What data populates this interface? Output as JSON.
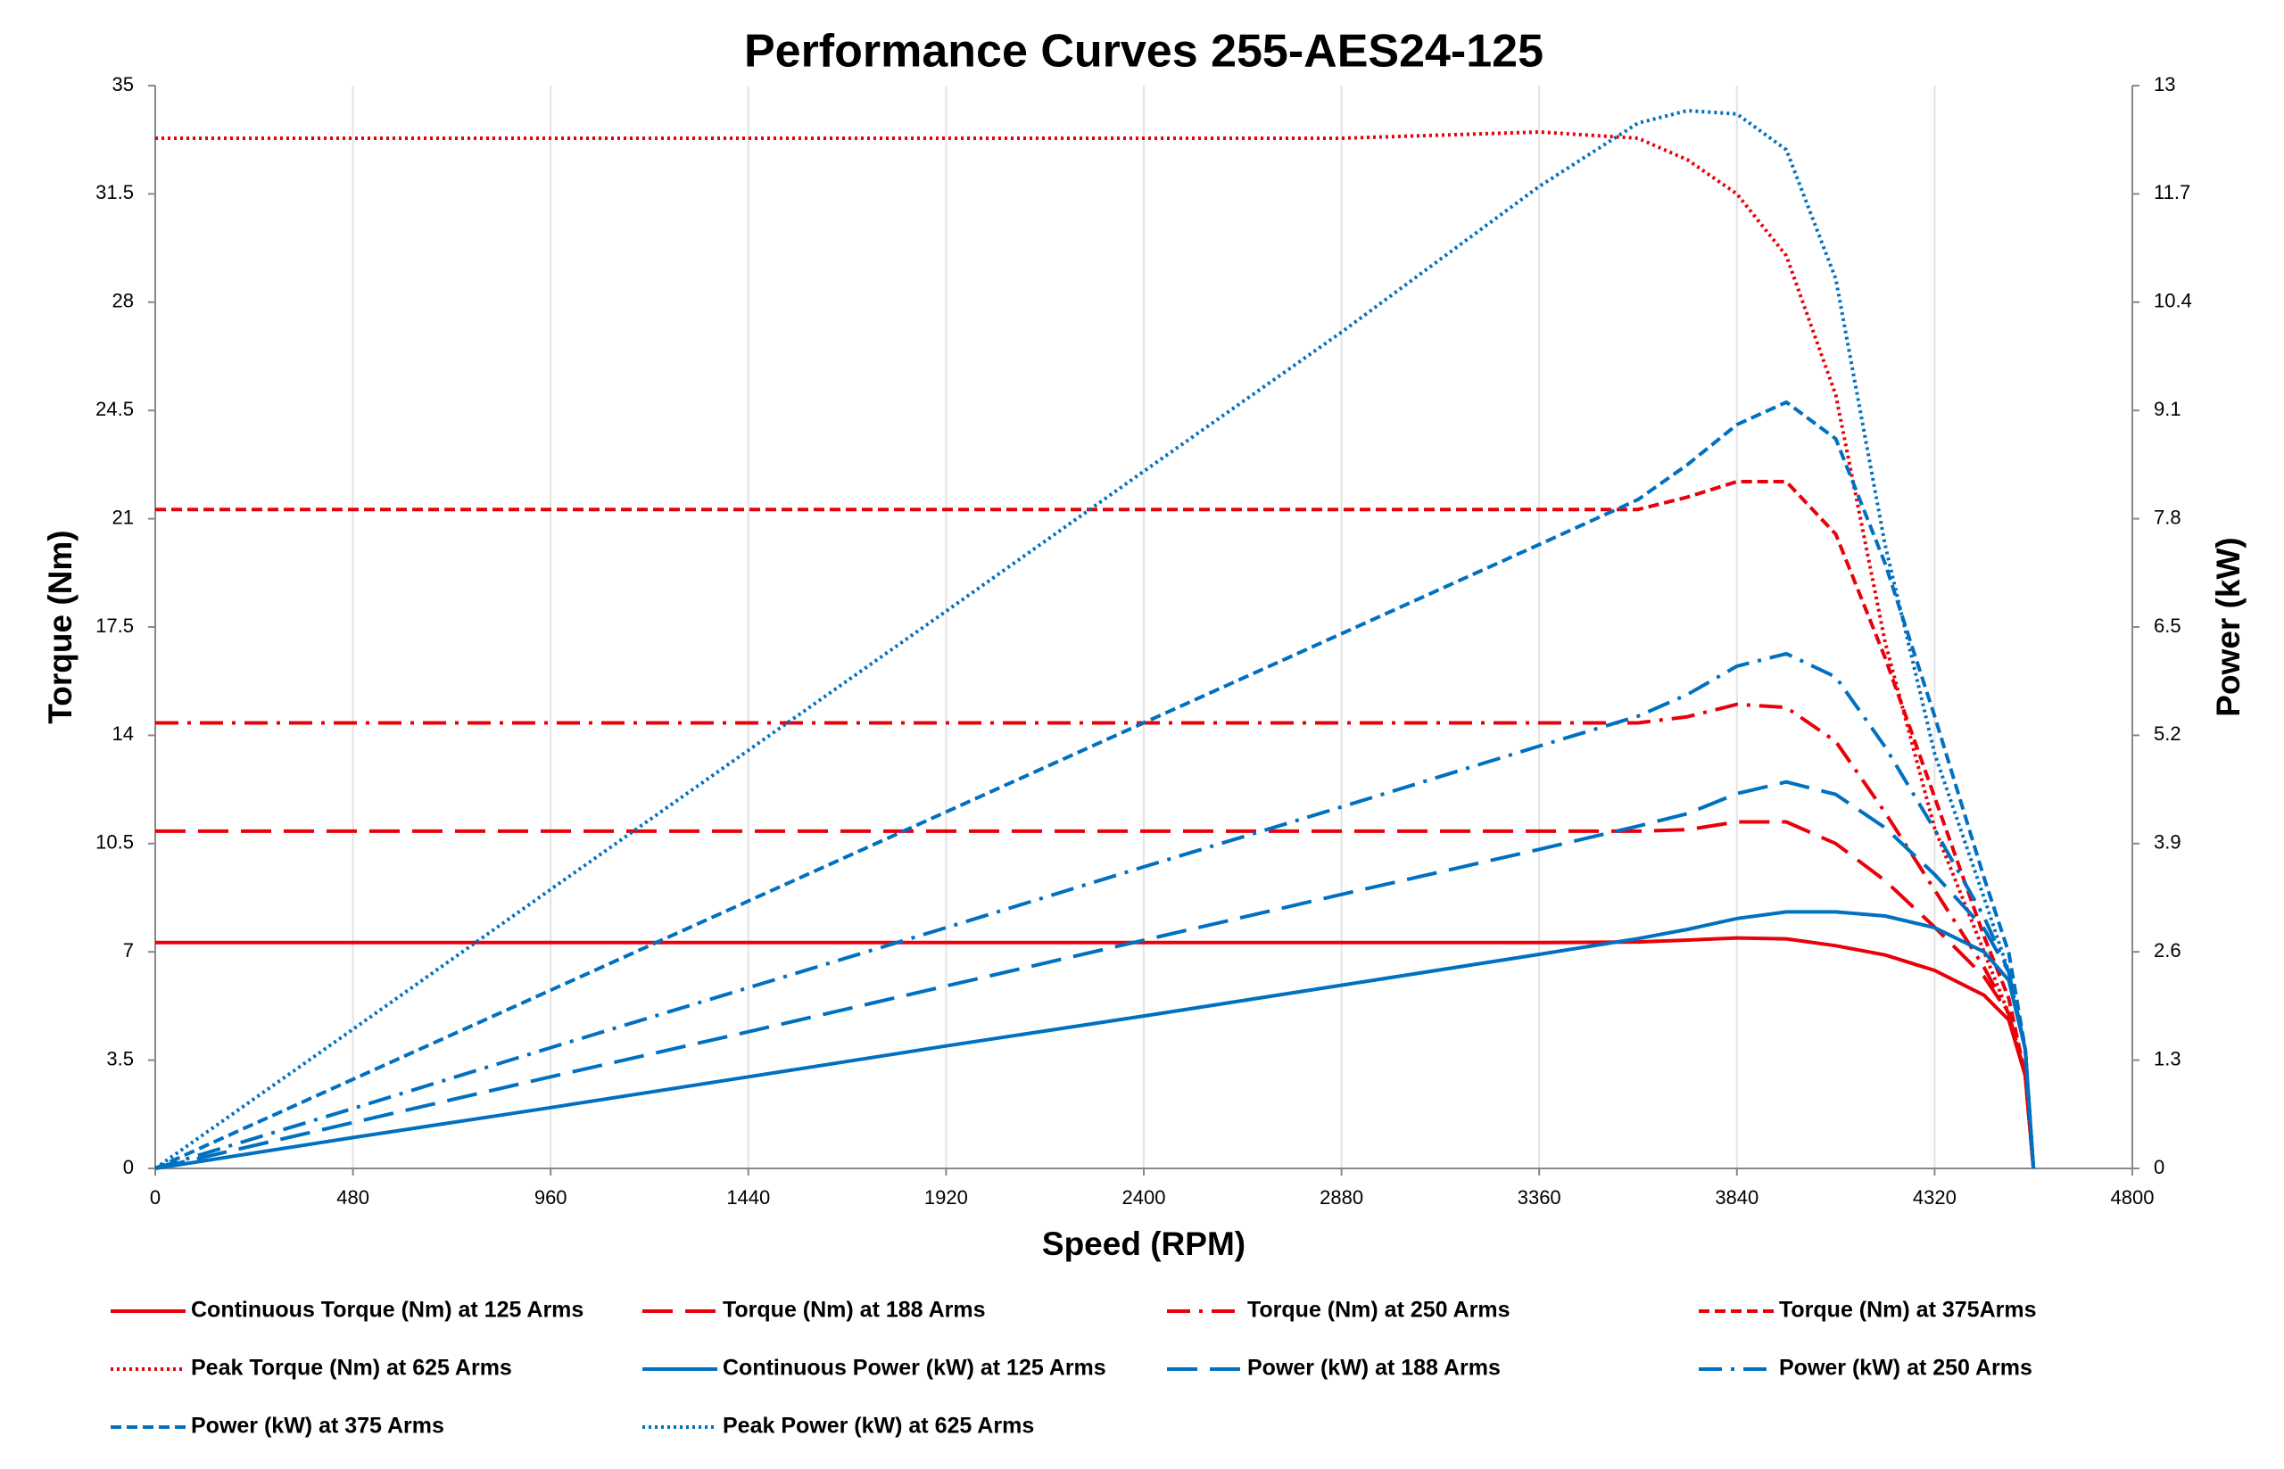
{
  "chart_data": {
    "type": "line",
    "title": "Performance Curves 255-AES24-125",
    "x_label": "Speed (RPM)",
    "y_label": "Torque (Nm)",
    "y2_label": "Power (kW)",
    "x": [
      0,
      480,
      960,
      1440,
      1920,
      2400,
      2880,
      3360,
      3600,
      3720,
      3840,
      3960,
      4080,
      4200,
      4320,
      4440,
      4500,
      4540,
      4560
    ],
    "xlim": [
      0,
      4800
    ],
    "xticks": [
      0,
      480,
      960,
      1440,
      1920,
      2400,
      2880,
      3360,
      3840,
      4320,
      4800
    ],
    "ylim": [
      0,
      35
    ],
    "yticks": [
      0,
      3.5,
      7,
      10.5,
      14,
      17.5,
      21,
      24.5,
      28,
      31.5,
      35
    ],
    "y2lim": [
      0,
      13
    ],
    "y2ticks": [
      0,
      1.3,
      2.6,
      3.9,
      5.2,
      6.5,
      7.8,
      9.1,
      10.4,
      11.7,
      13
    ],
    "grid": "x",
    "series": [
      {
        "name": "Continuous Torque (Nm) at 125 Arms",
        "color": "#e8000b",
        "dash": "solid",
        "values": [
          7.3,
          7.3,
          7.3,
          7.3,
          7.3,
          7.3,
          7.3,
          7.3,
          7.32,
          7.38,
          7.45,
          7.42,
          7.2,
          6.9,
          6.4,
          5.6,
          4.8,
          3.0,
          0
        ]
      },
      {
        "name": "Torque (Nm) at 188 Arms",
        "color": "#e8000b",
        "dash": "long-dash",
        "values": [
          10.9,
          10.9,
          10.9,
          10.9,
          10.9,
          10.9,
          10.9,
          10.9,
          10.9,
          10.95,
          11.2,
          11.2,
          10.5,
          9.3,
          7.8,
          6.2,
          5.0,
          3.0,
          0
        ]
      },
      {
        "name": "Torque (Nm) at 250 Arms",
        "color": "#e8000b",
        "dash": "dash-dot",
        "values": [
          14.4,
          14.4,
          14.4,
          14.4,
          14.4,
          14.4,
          14.4,
          14.4,
          14.4,
          14.6,
          15.0,
          14.9,
          13.8,
          11.5,
          9.0,
          6.5,
          5.0,
          3.0,
          0
        ]
      },
      {
        "name": "Torque (Nm) at 375Arms",
        "color": "#e8000b",
        "dash": "dash",
        "values": [
          21.3,
          21.3,
          21.3,
          21.3,
          21.3,
          21.3,
          21.3,
          21.3,
          21.3,
          21.7,
          22.2,
          22.2,
          20.5,
          16.5,
          12.0,
          7.5,
          5.5,
          3.0,
          0
        ]
      },
      {
        "name": "Peak Torque (Nm) at 625  Arms",
        "color": "#e8000b",
        "dash": "dot",
        "values": [
          33.3,
          33.3,
          33.3,
          33.3,
          33.3,
          33.3,
          33.3,
          33.5,
          33.3,
          32.6,
          31.5,
          29.5,
          25.0,
          17.0,
          11.0,
          7.0,
          5.0,
          3.0,
          0
        ]
      },
      {
        "name": "Continuous Power (kW) at 125 Arms",
        "color": "#0070c0",
        "dash": "solid",
        "axis": "y2",
        "values": [
          0,
          0.37,
          0.73,
          1.1,
          1.47,
          1.83,
          2.2,
          2.57,
          2.76,
          2.87,
          3.0,
          3.08,
          3.08,
          3.03,
          2.89,
          2.6,
          2.26,
          1.43,
          0
        ]
      },
      {
        "name": "Power (kW) at 188 Arms",
        "color": "#0070c0",
        "dash": "long-dash",
        "axis": "y2",
        "values": [
          0,
          0.55,
          1.1,
          1.64,
          2.19,
          2.74,
          3.29,
          3.83,
          4.11,
          4.26,
          4.5,
          4.64,
          4.49,
          4.09,
          3.53,
          2.88,
          2.36,
          1.43,
          0
        ]
      },
      {
        "name": "Power (kW) at 250 Arms",
        "color": "#0070c0",
        "dash": "dash-dot",
        "axis": "y2",
        "values": [
          0,
          0.72,
          1.45,
          2.17,
          2.89,
          3.62,
          4.34,
          5.07,
          5.43,
          5.69,
          6.03,
          6.18,
          5.9,
          5.06,
          4.07,
          3.02,
          2.36,
          1.43,
          0
        ]
      },
      {
        "name": "Power (kW) at 375 Arms",
        "color": "#0070c0",
        "dash": "dash",
        "axis": "y2",
        "values": [
          0,
          1.07,
          2.14,
          3.21,
          4.28,
          5.35,
          6.42,
          7.49,
          8.03,
          8.45,
          8.93,
          9.2,
          8.76,
          7.26,
          5.43,
          3.49,
          2.59,
          1.43,
          0
        ]
      },
      {
        "name": "Peak Power (kW) at 625 Arms",
        "color": "#0070c0",
        "dash": "dot",
        "axis": "y2",
        "values": [
          0,
          1.67,
          3.35,
          5.02,
          6.69,
          8.37,
          10.04,
          11.79,
          12.55,
          12.7,
          12.66,
          12.23,
          10.68,
          7.48,
          4.98,
          3.25,
          2.36,
          1.43,
          0
        ]
      }
    ]
  }
}
